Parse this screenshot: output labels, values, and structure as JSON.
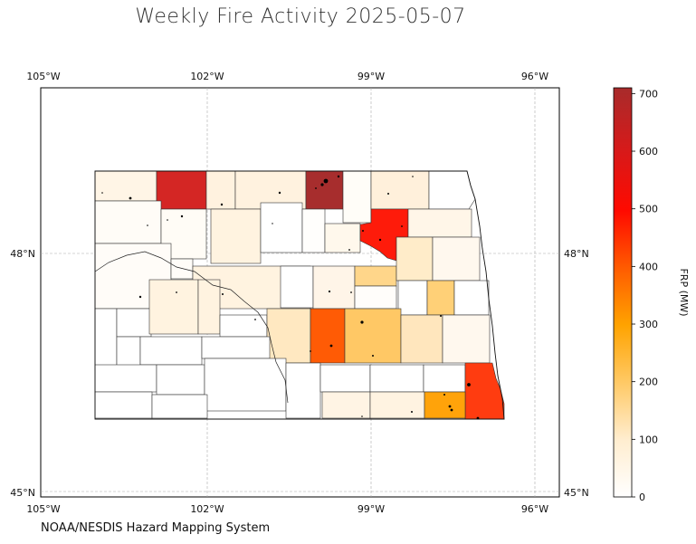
{
  "title": "Weekly Fire Activity 2025-05-07",
  "footer": "NOAA/NESDIS Hazard Mapping System",
  "map": {
    "lon_ticks": [
      "105°W",
      "102°W",
      "99°W",
      "96°W"
    ],
    "lat_ticks": [
      "48°N",
      "45°N"
    ],
    "gridlines": true,
    "extent": {
      "lon": [
        -105,
        -95.5
      ],
      "lat": [
        45,
        50.1
      ]
    }
  },
  "colorbar": {
    "label": "FRP (MW)",
    "ticks": [
      "0",
      "100",
      "200",
      "300",
      "400",
      "500",
      "600",
      "700"
    ],
    "min": 0,
    "max": 710,
    "colors": [
      "#fffef6",
      "#ffedcf",
      "#ffc965",
      "#ffa300",
      "#ff5b00",
      "#ff0a00",
      "#d61a1a",
      "#a82b2b"
    ]
  }
}
